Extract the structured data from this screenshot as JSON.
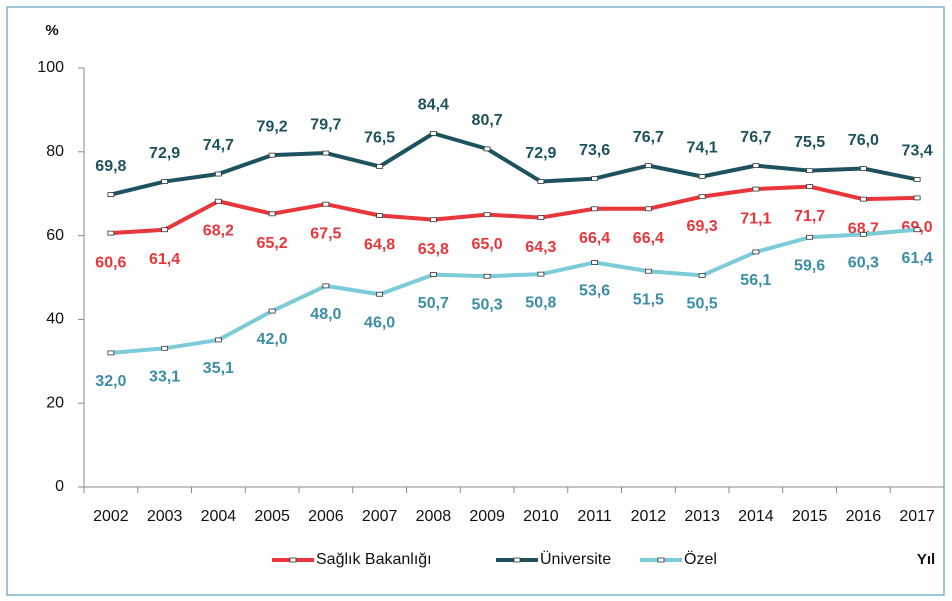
{
  "chart_data": {
    "type": "line",
    "y_label": "%",
    "x_label": "Yıl",
    "categories": [
      "2002",
      "2003",
      "2004",
      "2005",
      "2006",
      "2007",
      "2008",
      "2009",
      "2010",
      "2011",
      "2012",
      "2013",
      "2014",
      "2015",
      "2016",
      "2017"
    ],
    "ylim": [
      0,
      100
    ],
    "yticks": [
      0,
      20,
      40,
      60,
      80,
      100
    ],
    "series": [
      {
        "name": "Sağlık Bakanlığı",
        "color": "#e8363a",
        "label_color": "#e8363a",
        "values": [
          60.6,
          61.4,
          68.2,
          65.2,
          67.5,
          64.8,
          63.8,
          65.0,
          64.3,
          66.4,
          66.4,
          69.3,
          71.1,
          71.7,
          68.7,
          69.0
        ],
        "value_labels": [
          "60,6",
          "61,4",
          "68,2",
          "65,2",
          "67,5",
          "64,8",
          "63,8",
          "65,0",
          "64,3",
          "66,4",
          "66,4",
          "69,3",
          "71,1",
          "71,7",
          "68,7",
          "69,0"
        ]
      },
      {
        "name": "Üniversite",
        "color": "#1d525e",
        "label_color": "#1d525e",
        "values": [
          69.8,
          72.9,
          74.7,
          79.2,
          79.7,
          76.5,
          84.4,
          80.7,
          72.9,
          73.6,
          76.7,
          74.1,
          76.7,
          75.5,
          76.0,
          73.4
        ],
        "value_labels": [
          "69,8",
          "72,9",
          "74,7",
          "79,2",
          "79,7",
          "76,5",
          "84,4",
          "80,7",
          "72,9",
          "73,6",
          "76,7",
          "74,1",
          "76,7",
          "75,5",
          "76,0",
          "73,4"
        ]
      },
      {
        "name": "Özel",
        "color": "#7ccbd8",
        "label_color": "#3b8ea6",
        "values": [
          32.0,
          33.1,
          35.1,
          42.0,
          48.0,
          46.0,
          50.7,
          50.3,
          50.8,
          53.6,
          51.5,
          50.5,
          56.1,
          59.6,
          60.3,
          61.4
        ],
        "value_labels": [
          "32,0",
          "33,1",
          "35,1",
          "42,0",
          "48,0",
          "46,0",
          "50,7",
          "50,3",
          "50,8",
          "53,6",
          "51,5",
          "50,5",
          "56,1",
          "59,6",
          "60,3",
          "61,4"
        ]
      }
    ]
  }
}
